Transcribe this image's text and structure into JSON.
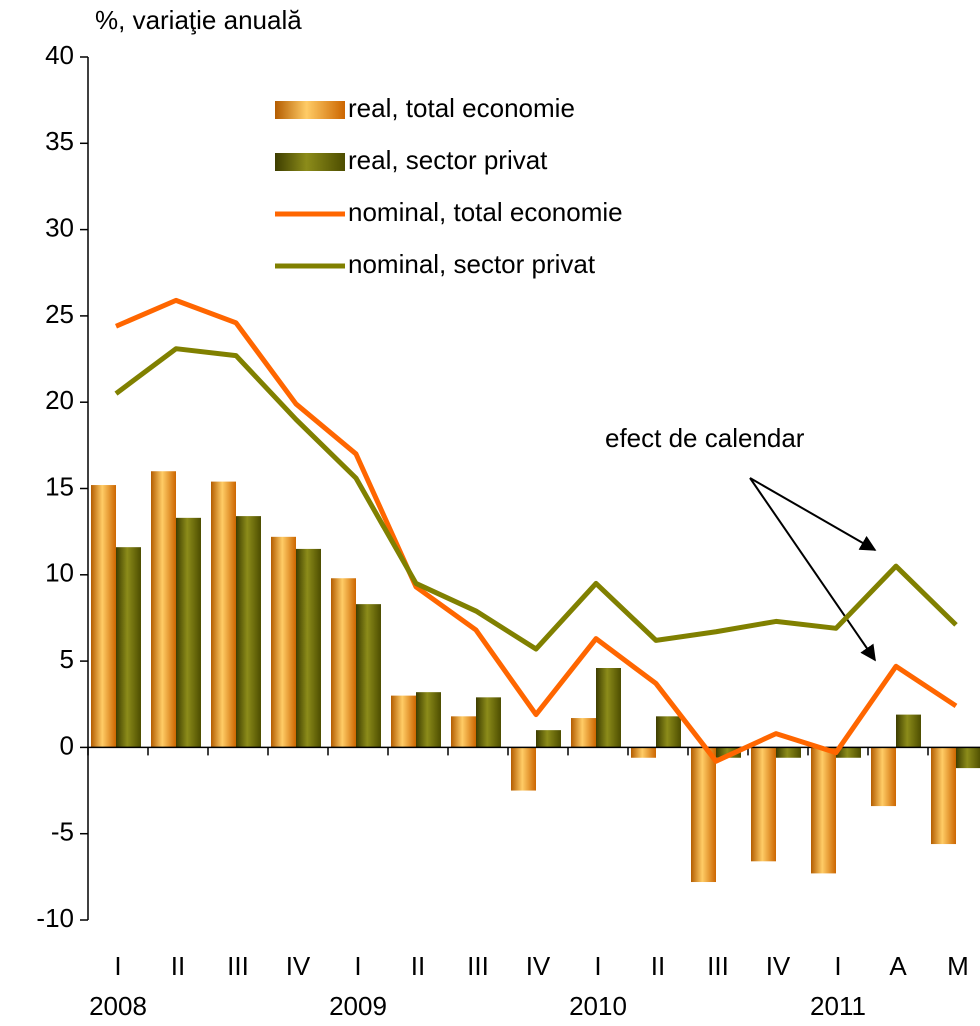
{
  "chart_data": {
    "type": "bar",
    "y_axis_label": "%, variaţie anuală",
    "categories": [
      "I",
      "II",
      "III",
      "IV",
      "I",
      "II",
      "III",
      "IV",
      "I",
      "II",
      "III",
      "IV",
      "I",
      "A",
      "M"
    ],
    "years": [
      "2008",
      null,
      null,
      null,
      "2009",
      null,
      null,
      null,
      "2010",
      null,
      null,
      null,
      "2011",
      null,
      null
    ],
    "series": [
      {
        "name": "real, total economie",
        "type": "bar",
        "color": "#ff8c00",
        "values": [
          15.2,
          16.0,
          15.4,
          12.2,
          9.8,
          3.0,
          1.8,
          -2.5,
          1.7,
          -0.6,
          -7.8,
          -6.6,
          -7.3,
          -3.4,
          -5.6
        ]
      },
      {
        "name": "real, sector privat",
        "type": "bar",
        "color": "#666600",
        "values": [
          11.6,
          13.3,
          13.4,
          11.5,
          8.3,
          3.2,
          2.9,
          1.0,
          4.6,
          1.8,
          -0.6,
          -0.6,
          -0.6,
          1.9,
          -1.2
        ]
      },
      {
        "name": "nominal, total economie",
        "type": "line",
        "color": "#ff6600",
        "values": [
          24.4,
          25.9,
          24.6,
          19.9,
          17.0,
          9.3,
          6.8,
          1.9,
          6.3,
          3.7,
          -0.8,
          0.8,
          -0.3,
          4.7,
          2.4
        ]
      },
      {
        "name": "nominal, sector privat",
        "type": "line",
        "color": "#808000",
        "values": [
          20.5,
          23.1,
          22.7,
          19.0,
          15.6,
          9.5,
          7.9,
          5.7,
          9.5,
          6.2,
          6.7,
          7.3,
          6.9,
          10.5,
          7.1
        ]
      }
    ],
    "annotation": "efect de calendar",
    "ylim": [
      -10,
      40
    ],
    "yticks": [
      -10,
      -5,
      0,
      5,
      10,
      15,
      20,
      25,
      30,
      35,
      40
    ]
  }
}
